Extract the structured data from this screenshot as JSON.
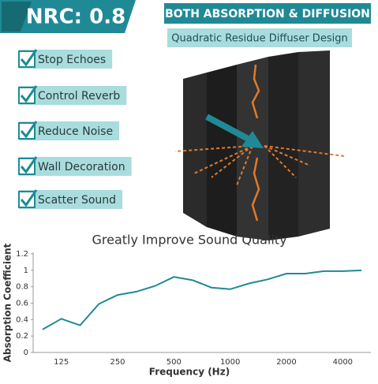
{
  "badge": "NRC: 0.8",
  "header": {
    "title": "BOTH ABSORPTION & DIFFUSION",
    "subtitle": "Quadratic Residue Diffuser Design"
  },
  "features": [
    "Stop Echoes",
    "Control Reverb",
    "Reduce Noise",
    "Wall Decoration",
    "Scatter Sound"
  ],
  "chart_data": {
    "type": "line",
    "title": "Greatly Improve Sound Quality",
    "x_label": "Frequency (Hz)",
    "y_label": "Absorption Coefficient",
    "categories": [
      null,
      "125",
      null,
      null,
      "250",
      null,
      null,
      "500",
      null,
      null,
      "1000",
      null,
      null,
      "2000",
      null,
      null,
      "4000",
      null
    ],
    "values": [
      0.28,
      0.41,
      0.33,
      0.59,
      0.7,
      0.74,
      0.81,
      0.92,
      0.88,
      0.79,
      0.77,
      0.84,
      0.89,
      0.96,
      0.96,
      0.99,
      0.99,
      1.0
    ],
    "color": "#1f8a96",
    "ylim": [
      0,
      1.2
    ],
    "yticks": [
      0,
      0.2,
      0.4,
      0.6,
      0.8,
      1,
      1.2
    ],
    "grid": false
  }
}
